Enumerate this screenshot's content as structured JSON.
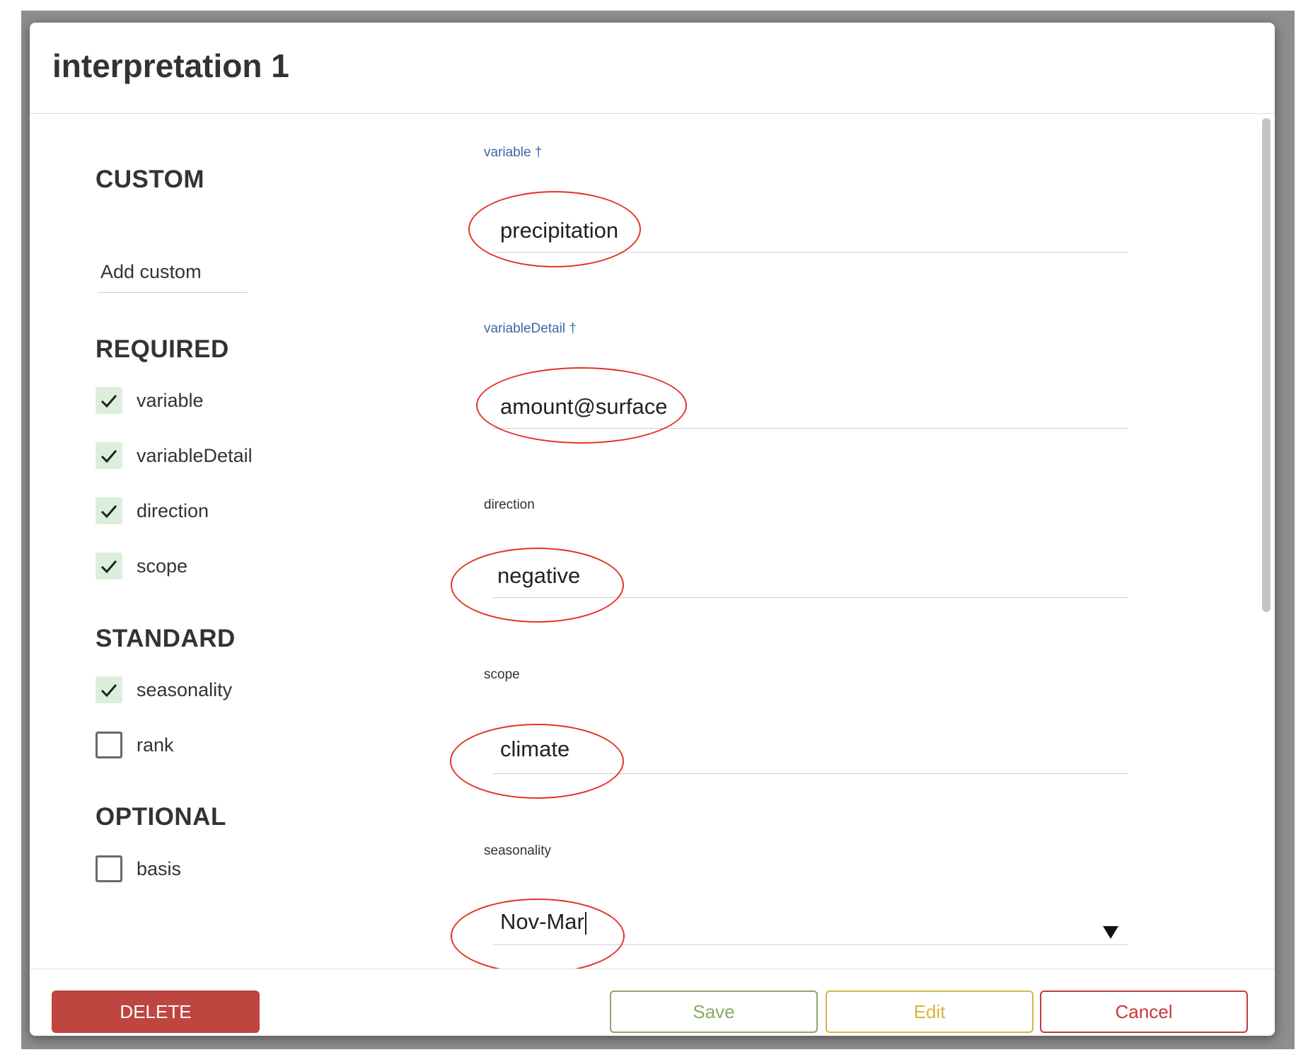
{
  "dialog": {
    "title": "interpretation 1"
  },
  "sections": {
    "custom": "CUSTOM",
    "required": "REQUIRED",
    "standard": "STANDARD",
    "optional": "OPTIONAL"
  },
  "custom": {
    "add_placeholder": "Add custom"
  },
  "required_items": [
    {
      "label": "variable",
      "checked": true
    },
    {
      "label": "variableDetail",
      "checked": true
    },
    {
      "label": "direction",
      "checked": true
    },
    {
      "label": "scope",
      "checked": true
    }
  ],
  "standard_items": [
    {
      "label": "seasonality",
      "checked": true
    },
    {
      "label": "rank",
      "checked": false
    }
  ],
  "optional_items": [
    {
      "label": "basis",
      "checked": false
    }
  ],
  "fields": {
    "variable": {
      "label": "variable †",
      "value": "precipitation"
    },
    "variableDetail": {
      "label": "variableDetail †",
      "value": "amount@surface"
    },
    "direction": {
      "label": "direction",
      "value": "negative"
    },
    "scope": {
      "label": "scope",
      "value": "climate"
    },
    "seasonality": {
      "label": "seasonality",
      "value": "Nov-Mar"
    }
  },
  "buttons": {
    "delete": "DELETE",
    "save": "Save",
    "edit": "Edit",
    "cancel": "Cancel"
  },
  "colors": {
    "annotation_circle": "#e53323",
    "delete": "#bf4540",
    "save": "#8aa865",
    "edit": "#d9b640",
    "cancel": "#c8393a",
    "checked_bg": "#dcefdc",
    "field_label_blue": "#3a6aa8"
  }
}
